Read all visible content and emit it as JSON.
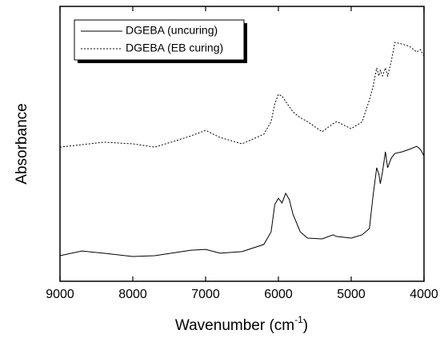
{
  "chart_data": {
    "type": "line",
    "y_label": "Absorbance",
    "x_label": {
      "text": "Wavenumber (cm",
      "superscript": "-1",
      "suffix": ")"
    },
    "x": [
      9000,
      8700,
      8400,
      8000,
      7700,
      7400,
      7200,
      7000,
      6800,
      6500,
      6200,
      6100,
      6050,
      6000,
      5950,
      5900,
      5850,
      5800,
      5700,
      5600,
      5400,
      5250,
      5200,
      5000,
      4850,
      4750,
      4700,
      4650,
      4620,
      4600,
      4570,
      4530,
      4500,
      4450,
      4400,
      4300,
      4200,
      4100,
      4050,
      4000
    ],
    "series": [
      {
        "name": "DGEBA (uncuring)",
        "color": "#000000",
        "dash": "none",
        "values": [
          9.3,
          11.0,
          10.2,
          9.0,
          9.3,
          10.5,
          11.3,
          11.6,
          10.2,
          10.8,
          13.4,
          18.0,
          27.9,
          30.2,
          28.5,
          32.0,
          29.7,
          24.4,
          18.0,
          15.7,
          15.4,
          16.9,
          16.3,
          15.7,
          16.9,
          19.2,
          31.1,
          41.3,
          39.0,
          35.5,
          39.8,
          47.1,
          41.3,
          44.8,
          46.5,
          47.1,
          48.0,
          49.1,
          48.0,
          45.6
        ]
      },
      {
        "name": "DGEBA (EB curing)",
        "color": "#000000",
        "dash": "2,2",
        "values": [
          48.8,
          49.7,
          50.6,
          50.0,
          48.8,
          51.2,
          52.9,
          54.9,
          52.3,
          50.0,
          53.5,
          58.1,
          64.5,
          68.0,
          67.4,
          65.4,
          63.5,
          61.6,
          59.5,
          58.1,
          54.4,
          57.3,
          58.1,
          55.5,
          58.0,
          66.0,
          70.9,
          77.6,
          74.7,
          76.7,
          74.7,
          77.6,
          74.7,
          80.0,
          86.9,
          86.3,
          85.5,
          83.4,
          84.3,
          82.0
        ]
      }
    ],
    "xlim": [
      9000,
      4000
    ],
    "xticks": [
      9000,
      8000,
      7000,
      6000,
      5000,
      4000
    ],
    "ylim": [
      0,
      100
    ],
    "legend": "upper-left"
  }
}
